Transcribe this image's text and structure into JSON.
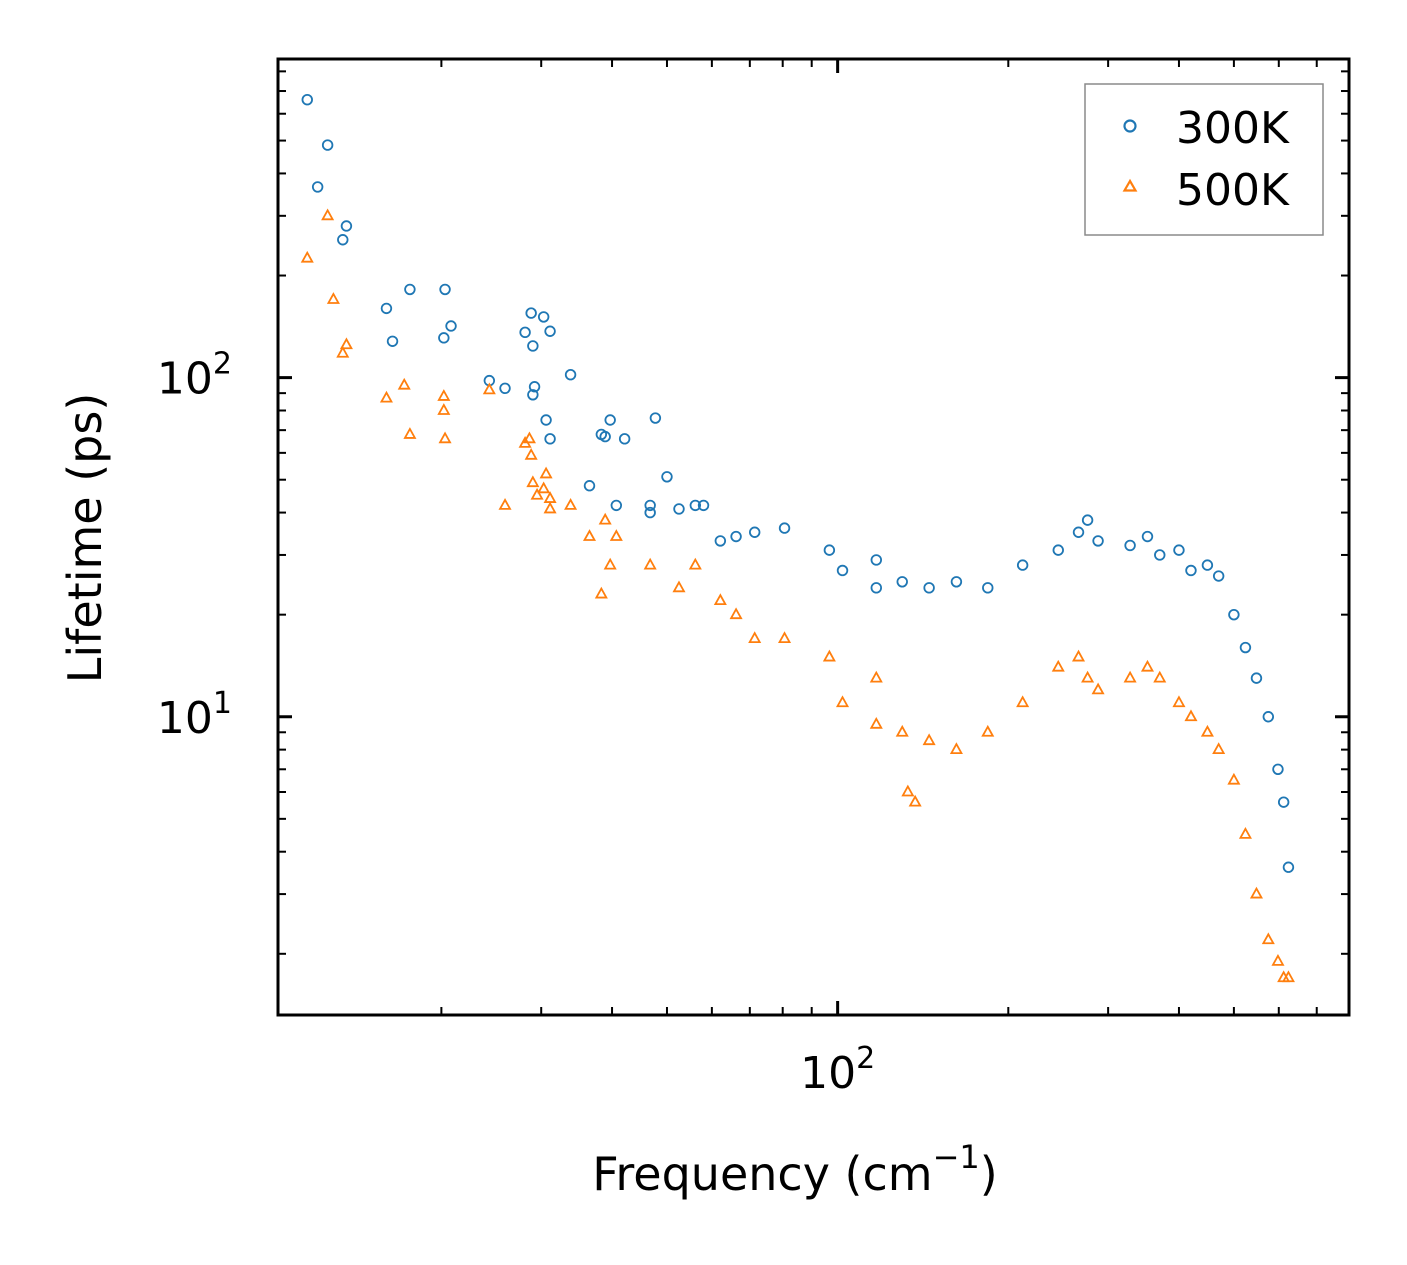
{
  "chart_data": {
    "type": "scatter",
    "title": "",
    "xlabel": "Frequency (cm",
    "xlabel_exponent": "−1",
    "xlabel_close": ")",
    "ylabel": "Lifetime (ps)",
    "xscale": "log",
    "yscale": "log",
    "xlim": [
      10.3,
      798
    ],
    "ylim": [
      1.32,
      870
    ],
    "x_ticks": [
      {
        "value": 100,
        "base": "10",
        "exp": "2"
      }
    ],
    "y_ticks": [
      {
        "value": 10,
        "base": "10",
        "exp": "1"
      },
      {
        "value": 100,
        "base": "10",
        "exp": "2"
      }
    ],
    "grid": false,
    "legend_position": "top-right",
    "series": [
      {
        "name": "300K",
        "marker": "circle",
        "color": "#1f77b4",
        "x": [
          11.6,
          12.6,
          12.1,
          13.6,
          13.4,
          16.0,
          17.6,
          20.3,
          20.2,
          24.3,
          16.4,
          20.8,
          28.1,
          28.8,
          29.0,
          30.3,
          31.1,
          33.8,
          29.2,
          29.0,
          31.1,
          38.9,
          39.7,
          38.3,
          30.6,
          25.9,
          36.5,
          40.7,
          46.7,
          46.7,
          50.0,
          52.5,
          56.1,
          42.1,
          47.7,
          58.0,
          62.1,
          66.2,
          71.4,
          80.6,
          96.7,
          117.0,
          102.0,
          117.0,
          130.0,
          145.0,
          162.0,
          184.0,
          212.0,
          245.0,
          266.0,
          276.0,
          288.0,
          328.0,
          352.0,
          370.0,
          400.0,
          420.0,
          449.0,
          470.0,
          500.0,
          524.0,
          548.0,
          575.0,
          598.0,
          612.0,
          624.0
        ],
        "y": [
          660,
          485,
          365,
          280,
          255,
          160,
          182,
          182,
          131,
          98,
          128,
          142,
          136,
          155,
          124,
          151,
          137,
          102,
          94,
          89,
          66,
          67,
          75,
          68,
          75,
          93,
          48,
          42,
          42,
          40,
          51,
          41,
          42,
          66,
          76,
          42,
          33,
          34,
          35,
          36,
          31,
          29,
          27,
          24,
          25,
          24,
          25,
          24,
          28,
          31,
          35,
          38,
          33,
          32,
          34,
          30,
          31,
          27,
          28,
          26,
          20,
          16,
          13,
          10,
          7,
          5.6,
          3.6
        ]
      },
      {
        "name": "500K",
        "marker": "triangle",
        "color": "#ff7f0e",
        "x": [
          11.6,
          12.6,
          12.9,
          13.6,
          13.4,
          16.0,
          17.6,
          20.3,
          20.2,
          24.3,
          17.2,
          20.2,
          28.1,
          28.8,
          29.0,
          30.3,
          31.1,
          33.8,
          28.6,
          29.5,
          31.1,
          38.9,
          39.7,
          38.3,
          30.6,
          25.9,
          36.5,
          40.7,
          46.7,
          52.5,
          56.1,
          62.1,
          66.2,
          71.4,
          80.6,
          96.7,
          117.0,
          102.0,
          117.0,
          130.0,
          145.0,
          162.0,
          184.0,
          212.0,
          245.0,
          266.0,
          276.0,
          288.0,
          328.0,
          352.0,
          370.0,
          400.0,
          420.0,
          449.0,
          470.0,
          500.0,
          524.0,
          548.0,
          575.0,
          598.0,
          612.0,
          624.0,
          133.0,
          137.0
        ],
        "y": [
          225,
          300,
          170,
          125,
          118,
          87,
          68,
          66,
          88,
          92,
          95,
          80,
          64,
          59,
          49,
          47,
          44,
          42,
          66,
          45,
          41,
          38,
          28,
          23,
          52,
          42,
          34,
          34,
          28,
          24,
          28,
          22,
          20,
          17,
          17,
          15,
          13,
          11,
          9.5,
          9,
          8.5,
          8,
          9,
          11,
          14,
          15,
          13,
          12,
          13,
          14,
          13,
          11,
          10,
          9,
          8,
          6.5,
          4.5,
          3,
          2.2,
          1.9,
          1.7,
          1.7,
          6.0,
          5.6
        ]
      }
    ]
  }
}
